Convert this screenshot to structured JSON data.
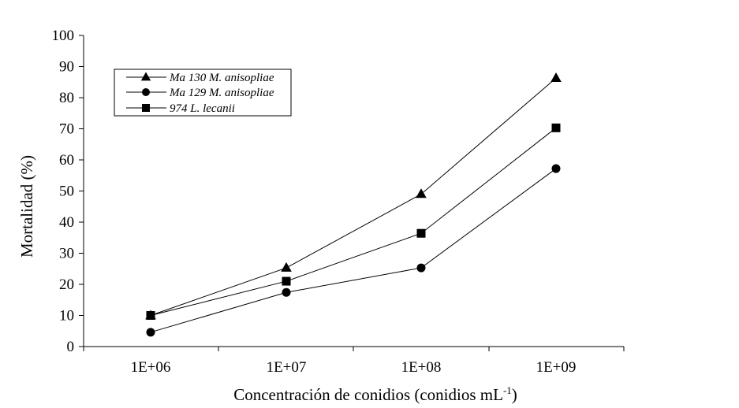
{
  "chart_data": {
    "type": "line",
    "categories": [
      "1E+06",
      "1E+07",
      "1E+08",
      "1E+09"
    ],
    "ylim": [
      0,
      100
    ],
    "yticks": [
      0,
      10,
      20,
      30,
      40,
      50,
      60,
      70,
      80,
      90,
      100
    ],
    "xlabel": "Concentración de conidios (conidios mL",
    "xlabel_sup": "-1",
    "xlabel_close": ")",
    "ylabel": "Mortalidad (%)",
    "grid": false,
    "legend_position": "top-left",
    "series": [
      {
        "name": "Ma 130 M. anisopliae",
        "marker": "triangle",
        "values": [
          10,
          25.3,
          49,
          86.3
        ]
      },
      {
        "name": "Ma 129 M. anisopliae",
        "marker": "circle",
        "values": [
          4.6,
          17.4,
          25.3,
          57.2
        ]
      },
      {
        "name": "974 L. lecanii",
        "marker": "square",
        "values": [
          10,
          21,
          36.4,
          70.3
        ]
      }
    ]
  }
}
